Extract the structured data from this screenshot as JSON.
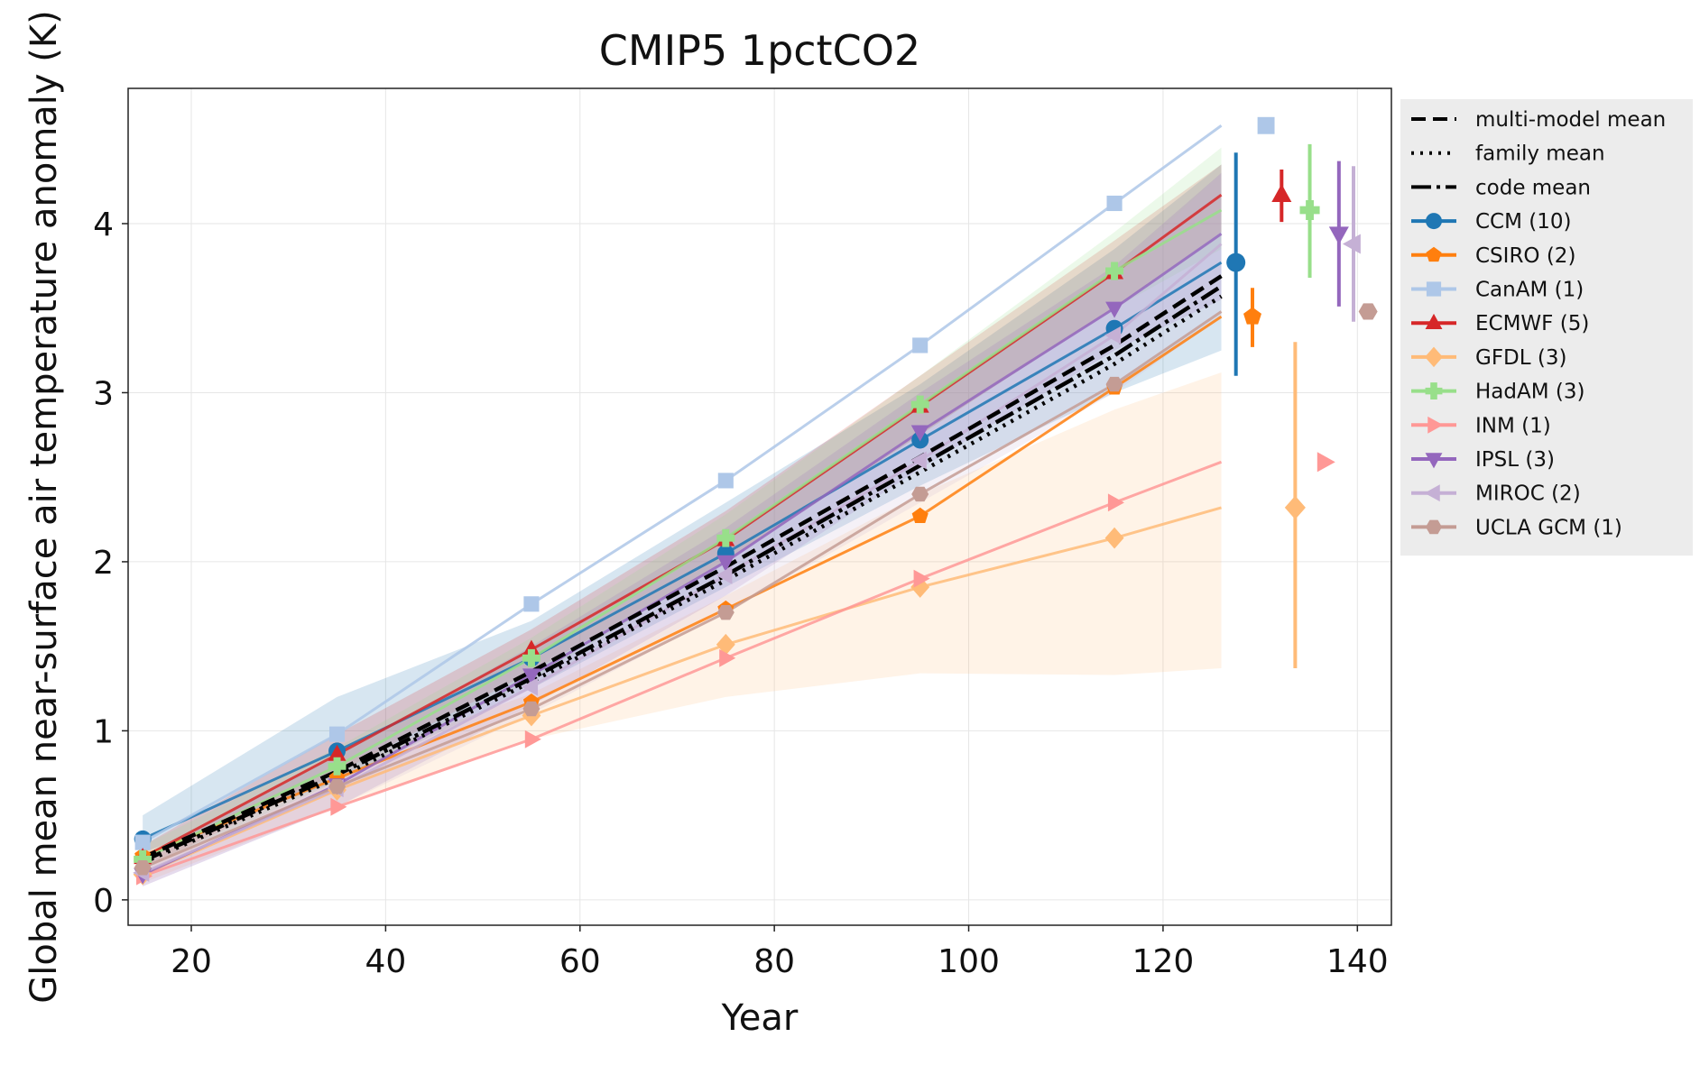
{
  "chart_data": {
    "type": "line",
    "title": "CMIP5 1pctCO2",
    "xlabel": "Year",
    "ylabel": "Global mean near-surface air temperature anomaly (K)",
    "xlim": [
      13.5,
      143.5
    ],
    "ylim": [
      -0.15,
      4.8
    ],
    "xticks": [
      20,
      40,
      60,
      80,
      100,
      120,
      140
    ],
    "yticks": [
      0,
      1,
      2,
      3,
      4
    ],
    "grid": true,
    "legend_position": "outside-right",
    "x": [
      15,
      35,
      55,
      75,
      95,
      115,
      126
    ],
    "means": [
      {
        "name": "multi-model mean",
        "style": "dashed",
        "values": [
          0.25,
          0.76,
          1.35,
          1.97,
          2.62,
          3.28,
          3.69
        ]
      },
      {
        "name": "family mean",
        "style": "dotted",
        "values": [
          0.22,
          0.72,
          1.29,
          1.89,
          2.53,
          3.17,
          3.57
        ]
      },
      {
        "name": "code mean",
        "style": "dashdot",
        "values": [
          0.23,
          0.74,
          1.31,
          1.92,
          2.57,
          3.22,
          3.63
        ]
      }
    ],
    "series": [
      {
        "name": "CCM (10)",
        "color": "#1f77b4",
        "marker": "circle",
        "values": [
          0.36,
          0.88,
          1.43,
          2.05,
          2.72,
          3.38,
          3.77
        ],
        "band": [
          [
            0.28,
            0.5
          ],
          [
            0.7,
            1.2
          ],
          [
            1.25,
            1.65
          ],
          [
            1.85,
            2.35
          ],
          [
            2.45,
            3.05
          ],
          [
            3.0,
            3.85
          ],
          [
            3.25,
            4.35
          ]
        ],
        "end": {
          "x": 127.5,
          "y": 3.77,
          "low": 3.1,
          "high": 4.42
        }
      },
      {
        "name": "CSIRO (2)",
        "color": "#ff7f0e",
        "marker": "pentagon",
        "values": [
          0.26,
          0.72,
          1.17,
          1.72,
          2.27,
          3.03,
          3.45
        ],
        "band": null,
        "end": {
          "x": 129.2,
          "y": 3.45,
          "low": 3.27,
          "high": 3.62
        }
      },
      {
        "name": "CanAM (1)",
        "color": "#aec7e8",
        "marker": "square",
        "values": [
          0.34,
          0.98,
          1.75,
          2.48,
          3.28,
          4.12,
          4.58
        ],
        "band": null,
        "end": {
          "x": 130.6,
          "y": 4.58,
          "low": null,
          "high": null
        }
      },
      {
        "name": "ECMWF (5)",
        "color": "#d62728",
        "marker": "triangle-up",
        "values": [
          0.25,
          0.86,
          1.48,
          2.13,
          2.92,
          3.71,
          4.17
        ],
        "band": [
          [
            0.18,
            0.32
          ],
          [
            0.75,
            0.98
          ],
          [
            1.35,
            1.6
          ],
          [
            2.0,
            2.3
          ],
          [
            2.75,
            3.1
          ],
          [
            3.5,
            3.9
          ],
          [
            3.95,
            4.35
          ]
        ],
        "end": {
          "x": 132.2,
          "y": 4.17,
          "low": 4.01,
          "high": 4.32
        }
      },
      {
        "name": "GFDL (3)",
        "color": "#ffbb78",
        "marker": "diamond",
        "values": [
          0.15,
          0.65,
          1.09,
          1.51,
          1.85,
          2.14,
          2.32
        ],
        "band": [
          [
            0.1,
            0.25
          ],
          [
            0.55,
            0.8
          ],
          [
            0.95,
            1.22
          ],
          [
            1.2,
            1.8
          ],
          [
            1.34,
            2.4
          ],
          [
            1.33,
            2.9
          ],
          [
            1.37,
            3.12
          ]
        ],
        "end": {
          "x": 133.6,
          "y": 2.32,
          "low": 1.37,
          "high": 3.3
        }
      },
      {
        "name": "HadAM (3)",
        "color": "#98df8a",
        "marker": "plus",
        "values": [
          0.24,
          0.79,
          1.43,
          2.14,
          2.93,
          3.72,
          4.08
        ],
        "band": [
          [
            0.18,
            0.32
          ],
          [
            0.7,
            0.9
          ],
          [
            1.3,
            1.55
          ],
          [
            2.0,
            2.28
          ],
          [
            2.75,
            3.1
          ],
          [
            3.5,
            3.95
          ],
          [
            3.85,
            4.45
          ]
        ],
        "end": {
          "x": 135.1,
          "y": 4.08,
          "low": 3.68,
          "high": 4.47
        }
      },
      {
        "name": "INM (1)",
        "color": "#ff9896",
        "marker": "triangle-right",
        "values": [
          0.14,
          0.55,
          0.95,
          1.43,
          1.9,
          2.35,
          2.59
        ],
        "band": null,
        "end": {
          "x": 136.6,
          "y": 2.59,
          "low": null,
          "high": null
        }
      },
      {
        "name": "IPSL (3)",
        "color": "#9467bd",
        "marker": "triangle-down",
        "values": [
          0.15,
          0.68,
          1.33,
          2.0,
          2.77,
          3.5,
          3.94
        ],
        "band": [
          [
            0.08,
            0.25
          ],
          [
            0.55,
            0.85
          ],
          [
            1.15,
            1.5
          ],
          [
            1.8,
            2.2
          ],
          [
            2.55,
            3.0
          ],
          [
            3.25,
            3.75
          ],
          [
            3.55,
            4.3
          ]
        ],
        "end": {
          "x": 138.1,
          "y": 3.94,
          "low": 3.51,
          "high": 4.37
        }
      },
      {
        "name": "MIROC (2)",
        "color": "#c5b0d5",
        "marker": "triangle-left",
        "values": [
          0.16,
          0.66,
          1.26,
          1.92,
          2.6,
          3.34,
          3.88
        ],
        "band": [
          [
            0.08,
            0.25
          ],
          [
            0.55,
            0.8
          ],
          [
            1.1,
            1.45
          ],
          [
            1.7,
            2.15
          ],
          [
            2.35,
            2.9
          ],
          [
            3.0,
            3.7
          ],
          [
            3.45,
            4.3
          ]
        ],
        "end": {
          "x": 139.6,
          "y": 3.88,
          "low": 3.42,
          "high": 4.34
        }
      },
      {
        "name": "UCLA GCM (1)",
        "color": "#c49c94",
        "marker": "hexagon",
        "values": [
          0.19,
          0.67,
          1.13,
          1.7,
          2.4,
          3.05,
          3.48
        ],
        "band": null,
        "end": {
          "x": 141.1,
          "y": 3.48,
          "low": null,
          "high": null
        }
      }
    ]
  }
}
